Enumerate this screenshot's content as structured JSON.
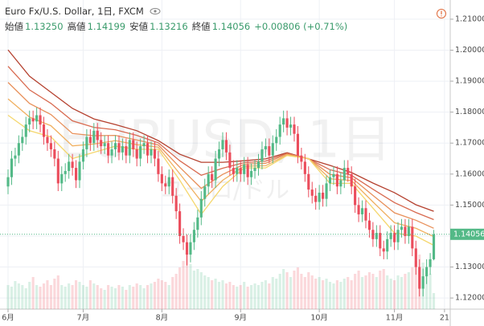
{
  "header": {
    "title": "Euro Fx/U.S. Dollar, 1日, FXCM",
    "ohlc": [
      {
        "label": "始値",
        "value": "1.13250"
      },
      {
        "label": "高値",
        "value": "1.14199"
      },
      {
        "label": "安値",
        "value": "1.13216"
      },
      {
        "label": "終値",
        "value": "1.14056"
      }
    ],
    "change": "+0.00806 (+0.71%)"
  },
  "watermark": "EURUSD, 1日",
  "watermark_sub": "ユーロ/ドル",
  "chart_data": {
    "type": "candlestick",
    "up_color": "#53b987",
    "down_color": "#eb4d5c",
    "xlim": [
      -2.25,
      123.6
    ],
    "ylim": [
      1.1164,
      1.2162
    ],
    "xticks": [
      {
        "value": 0,
        "label": "6月"
      },
      {
        "value": 21,
        "label": "7月"
      },
      {
        "value": 43,
        "label": "8月"
      },
      {
        "value": 65,
        "label": "9月"
      },
      {
        "value": 87,
        "label": "10月"
      },
      {
        "value": 108,
        "label": "11月"
      },
      {
        "value": 122,
        "label": "21"
      }
    ],
    "yticks": [
      {
        "value": 1.21,
        "label": "1.21000"
      },
      {
        "value": 1.2,
        "label": "1.20000"
      },
      {
        "value": 1.19,
        "label": "1.19000"
      },
      {
        "value": 1.18,
        "label": "1.18000"
      },
      {
        "value": 1.17,
        "label": "1.17000"
      },
      {
        "value": 1.16,
        "label": "1.16000"
      },
      {
        "value": 1.15,
        "label": "1.15000"
      },
      {
        "value": 1.14,
        "label": "1.14000"
      },
      {
        "value": 1.13,
        "label": "1.13000"
      },
      {
        "value": 1.12,
        "label": "1.12000"
      }
    ],
    "grid": true,
    "candles": [
      [
        1.156,
        1.1615,
        1.1535,
        1.159
      ],
      [
        1.159,
        1.1675,
        1.1565,
        1.165
      ],
      [
        1.165,
        1.1685,
        1.1625,
        1.166
      ],
      [
        1.166,
        1.1725,
        1.1635,
        1.17
      ],
      [
        1.17,
        1.1745,
        1.1675,
        1.172
      ],
      [
        1.172,
        1.1785,
        1.1695,
        1.176
      ],
      [
        1.176,
        1.1805,
        1.1735,
        1.178
      ],
      [
        1.178,
        1.1805,
        1.1745,
        1.177
      ],
      [
        1.177,
        1.1815,
        1.1745,
        1.179
      ],
      [
        1.179,
        1.1815,
        1.1735,
        1.176
      ],
      [
        1.176,
        1.1785,
        1.1695,
        1.172
      ],
      [
        1.172,
        1.1745,
        1.1675,
        1.17
      ],
      [
        1.17,
        1.1725,
        1.1655,
        1.168
      ],
      [
        1.168,
        1.1705,
        1.1625,
        1.165
      ],
      [
        1.165,
        1.1675,
        1.1545,
        1.157
      ],
      [
        1.157,
        1.1625,
        1.1545,
        1.16
      ],
      [
        1.16,
        1.1635,
        1.1575,
        1.161
      ],
      [
        1.161,
        1.1665,
        1.1585,
        1.164
      ],
      [
        1.164,
        1.1665,
        1.1595,
        1.162
      ],
      [
        1.162,
        1.1645,
        1.1555,
        1.158
      ],
      [
        1.158,
        1.1665,
        1.1555,
        1.164
      ],
      [
        1.164,
        1.1705,
        1.1615,
        1.168
      ],
      [
        1.168,
        1.1745,
        1.1655,
        1.172
      ],
      [
        1.172,
        1.1745,
        1.1675,
        1.17
      ],
      [
        1.17,
        1.1765,
        1.1675,
        1.174
      ],
      [
        1.174,
        1.1765,
        1.1685,
        1.171
      ],
      [
        1.171,
        1.1735,
        1.1665,
        1.169
      ],
      [
        1.169,
        1.1725,
        1.1665,
        1.17
      ],
      [
        1.17,
        1.1725,
        1.1635,
        1.166
      ],
      [
        1.166,
        1.1705,
        1.1635,
        1.168
      ],
      [
        1.168,
        1.1725,
        1.1655,
        1.17
      ],
      [
        1.17,
        1.1725,
        1.1645,
        1.167
      ],
      [
        1.167,
        1.1715,
        1.1645,
        1.169
      ],
      [
        1.169,
        1.1715,
        1.1635,
        1.166
      ],
      [
        1.166,
        1.1735,
        1.1635,
        1.171
      ],
      [
        1.171,
        1.1735,
        1.1655,
        1.168
      ],
      [
        1.168,
        1.1705,
        1.1625,
        1.165
      ],
      [
        1.165,
        1.1715,
        1.1625,
        1.169
      ],
      [
        1.169,
        1.1725,
        1.1665,
        1.17
      ],
      [
        1.17,
        1.1725,
        1.1635,
        1.166
      ],
      [
        1.166,
        1.1705,
        1.1635,
        1.168
      ],
      [
        1.168,
        1.1705,
        1.1625,
        1.165
      ],
      [
        1.165,
        1.1675,
        1.1575,
        1.16
      ],
      [
        1.16,
        1.1625,
        1.1545,
        1.157
      ],
      [
        1.157,
        1.1595,
        1.1535,
        1.156
      ],
      [
        1.156,
        1.1615,
        1.1535,
        1.159
      ],
      [
        1.159,
        1.1615,
        1.1505,
        1.153
      ],
      [
        1.153,
        1.1555,
        1.1455,
        1.148
      ],
      [
        1.148,
        1.1505,
        1.1375,
        1.14
      ],
      [
        1.14,
        1.1425,
        1.1355,
        1.138
      ],
      [
        1.138,
        1.1405,
        1.1305,
        1.134
      ],
      [
        1.134,
        1.1405,
        1.1315,
        1.138
      ],
      [
        1.138,
        1.1445,
        1.1355,
        1.142
      ],
      [
        1.142,
        1.1485,
        1.1395,
        1.146
      ],
      [
        1.146,
        1.1545,
        1.1435,
        1.152
      ],
      [
        1.152,
        1.1585,
        1.1495,
        1.156
      ],
      [
        1.156,
        1.1625,
        1.1535,
        1.16
      ],
      [
        1.16,
        1.1625,
        1.1555,
        1.158
      ],
      [
        1.158,
        1.1675,
        1.1555,
        1.165
      ],
      [
        1.165,
        1.1705,
        1.1625,
        1.168
      ],
      [
        1.168,
        1.1735,
        1.1655,
        1.171
      ],
      [
        1.171,
        1.1735,
        1.1645,
        1.167
      ],
      [
        1.167,
        1.1695,
        1.1595,
        1.162
      ],
      [
        1.162,
        1.1645,
        1.1575,
        1.16
      ],
      [
        1.16,
        1.1645,
        1.1575,
        1.162
      ],
      [
        1.162,
        1.1645,
        1.1575,
        1.16
      ],
      [
        1.16,
        1.1655,
        1.1575,
        1.163
      ],
      [
        1.163,
        1.1655,
        1.1565,
        1.159
      ],
      [
        1.159,
        1.1635,
        1.1565,
        1.161
      ],
      [
        1.161,
        1.1645,
        1.1585,
        1.162
      ],
      [
        1.162,
        1.1665,
        1.1595,
        1.164
      ],
      [
        1.164,
        1.1705,
        1.1615,
        1.168
      ],
      [
        1.168,
        1.1715,
        1.1655,
        1.169
      ],
      [
        1.169,
        1.1715,
        1.1635,
        1.166
      ],
      [
        1.166,
        1.1725,
        1.1635,
        1.17
      ],
      [
        1.17,
        1.1745,
        1.1675,
        1.172
      ],
      [
        1.172,
        1.1785,
        1.1695,
        1.176
      ],
      [
        1.176,
        1.1805,
        1.1735,
        1.178
      ],
      [
        1.178,
        1.1805,
        1.1725,
        1.175
      ],
      [
        1.175,
        1.1785,
        1.1725,
        1.176
      ],
      [
        1.176,
        1.1785,
        1.1705,
        1.173
      ],
      [
        1.173,
        1.1755,
        1.1635,
        1.166
      ],
      [
        1.166,
        1.1685,
        1.1615,
        1.164
      ],
      [
        1.164,
        1.1665,
        1.1575,
        1.16
      ],
      [
        1.16,
        1.1625,
        1.1525,
        1.155
      ],
      [
        1.155,
        1.1575,
        1.1505,
        1.153
      ],
      [
        1.153,
        1.1555,
        1.1485,
        1.151
      ],
      [
        1.151,
        1.1565,
        1.1485,
        1.154
      ],
      [
        1.154,
        1.1565,
        1.1495,
        1.152
      ],
      [
        1.152,
        1.1595,
        1.1495,
        1.157
      ],
      [
        1.157,
        1.1615,
        1.1545,
        1.159
      ],
      [
        1.159,
        1.1625,
        1.1565,
        1.16
      ],
      [
        1.16,
        1.1625,
        1.1535,
        1.156
      ],
      [
        1.156,
        1.1605,
        1.1535,
        1.158
      ],
      [
        1.158,
        1.1645,
        1.1555,
        1.162
      ],
      [
        1.162,
        1.1645,
        1.1575,
        1.16
      ],
      [
        1.16,
        1.1625,
        1.1535,
        1.156
      ],
      [
        1.156,
        1.1585,
        1.1475,
        1.15
      ],
      [
        1.15,
        1.1525,
        1.1445,
        1.147
      ],
      [
        1.147,
        1.1515,
        1.1445,
        1.149
      ],
      [
        1.149,
        1.1515,
        1.1425,
        1.145
      ],
      [
        1.145,
        1.1475,
        1.1395,
        1.142
      ],
      [
        1.142,
        1.1445,
        1.1365,
        1.139
      ],
      [
        1.139,
        1.1435,
        1.1365,
        1.141
      ],
      [
        1.141,
        1.1435,
        1.1335,
        1.136
      ],
      [
        1.136,
        1.1385,
        1.1325,
        1.135
      ],
      [
        1.135,
        1.1415,
        1.1325,
        1.139
      ],
      [
        1.139,
        1.1435,
        1.1365,
        1.141
      ],
      [
        1.141,
        1.1435,
        1.1355,
        1.138
      ],
      [
        1.138,
        1.1445,
        1.1355,
        1.142
      ],
      [
        1.142,
        1.1455,
        1.1395,
        1.143
      ],
      [
        1.143,
        1.1455,
        1.1375,
        1.14
      ],
      [
        1.14,
        1.1455,
        1.1375,
        1.143
      ],
      [
        1.143,
        1.1455,
        1.1335,
        1.136
      ],
      [
        1.136,
        1.1385,
        1.1275,
        1.13
      ],
      [
        1.13,
        1.1325,
        1.1205,
        1.123
      ],
      [
        1.123,
        1.1295,
        1.1205,
        1.127
      ],
      [
        1.127,
        1.1325,
        1.1245,
        1.13
      ],
      [
        1.13,
        1.1345,
        1.1275,
        1.1325
      ],
      [
        1.1325,
        1.14199,
        1.13216,
        1.14056
      ]
    ],
    "volume": [
      30,
      28,
      35,
      32,
      30,
      26,
      34,
      40,
      30,
      28,
      32,
      36,
      30,
      38,
      42,
      30,
      28,
      32,
      30,
      36,
      34,
      30,
      28,
      36,
      32,
      30,
      26,
      24,
      30,
      28,
      26,
      30,
      28,
      24,
      30,
      28,
      32,
      30,
      26,
      30,
      32,
      34,
      38,
      36,
      34,
      30,
      40,
      44,
      52,
      60,
      70,
      56,
      48,
      50,
      46,
      42,
      40,
      36,
      38,
      34,
      36,
      32,
      34,
      30,
      28,
      30,
      34,
      28,
      30,
      32,
      30,
      34,
      36,
      32,
      40,
      38,
      44,
      50,
      46,
      40,
      48,
      52,
      44,
      40,
      46,
      42,
      38,
      40,
      36,
      38,
      34,
      32,
      36,
      34,
      38,
      40,
      36,
      44,
      48,
      40,
      42,
      46,
      44,
      40,
      48,
      50,
      42,
      38,
      36,
      42,
      40,
      44,
      46,
      52,
      60,
      68,
      58,
      50,
      44,
      20
    ],
    "ma_x": [
      0,
      6,
      12,
      18,
      24,
      30,
      36,
      42,
      48,
      54,
      60,
      66,
      72,
      78,
      84,
      90,
      96,
      102,
      108,
      114,
      119
    ],
    "series": [
      {
        "color": "#b5412f",
        "values": [
          1.2001,
          1.1916,
          1.1864,
          1.1812,
          1.1778,
          1.176,
          1.174,
          1.1708,
          1.1664,
          1.1638,
          1.1638,
          1.1643,
          1.1649,
          1.1669,
          1.1649,
          1.1628,
          1.1605,
          1.1571,
          1.154,
          1.1501,
          1.148
        ]
      },
      {
        "color": "#d86a50",
        "values": [
          1.1948,
          1.1872,
          1.1828,
          1.1772,
          1.1751,
          1.1743,
          1.1725,
          1.1701,
          1.1643,
          1.1596,
          1.1619,
          1.1637,
          1.1642,
          1.1667,
          1.1649,
          1.1614,
          1.1596,
          1.1551,
          1.1508,
          1.1476,
          1.1453
        ]
      },
      {
        "color": "#e8905a",
        "values": [
          1.1896,
          1.1828,
          1.1792,
          1.1731,
          1.1724,
          1.1725,
          1.171,
          1.1694,
          1.1622,
          1.1554,
          1.1599,
          1.1632,
          1.1635,
          1.1665,
          1.165,
          1.1599,
          1.1588,
          1.1531,
          1.1475,
          1.1451,
          1.1425
        ]
      },
      {
        "color": "#f0b060",
        "values": [
          1.1843,
          1.1784,
          1.1756,
          1.1691,
          1.1697,
          1.1708,
          1.1695,
          1.1687,
          1.1601,
          1.1512,
          1.158,
          1.1626,
          1.1627,
          1.1662,
          1.165,
          1.1585,
          1.1579,
          1.151,
          1.1443,
          1.1425,
          1.1398
        ]
      },
      {
        "color": "#f5d76e",
        "values": [
          1.179,
          1.174,
          1.172,
          1.165,
          1.167,
          1.169,
          1.168,
          1.168,
          1.158,
          1.147,
          1.156,
          1.162,
          1.162,
          1.166,
          1.165,
          1.157,
          1.157,
          1.149,
          1.141,
          1.14,
          1.137
        ]
      }
    ]
  }
}
